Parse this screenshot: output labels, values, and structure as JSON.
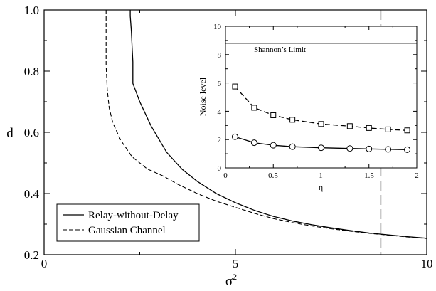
{
  "chart_data": [
    {
      "id": "main",
      "type": "line",
      "title": "",
      "xlabel": "σ",
      "xlabel_sup": "2",
      "ylabel": "d",
      "xlim": [
        0,
        10
      ],
      "ylim": [
        0.2,
        1.0
      ],
      "xticks": [
        0,
        5,
        10
      ],
      "xtick_labels": [
        "0",
        "5",
        "10"
      ],
      "yticks": [
        0.2,
        0.4,
        0.6,
        0.8,
        1.0
      ],
      "ytick_labels": [
        "0.2",
        "0.4",
        "0.6",
        "0.8",
        "1.0"
      ],
      "grid": false,
      "legend_position": "bottom-left",
      "series": [
        {
          "name": "Relay-without-Delay",
          "style": "solid",
          "color": "#000000",
          "x": [
            2.25,
            2.25,
            2.28,
            2.3,
            2.32,
            2.32,
            2.5,
            2.8,
            3.2,
            3.6,
            4.0,
            4.5,
            5.0,
            5.5,
            6.0,
            6.5,
            7.0,
            7.5,
            8.0,
            8.5,
            9.0,
            9.5,
            10.0
          ],
          "y": [
            1.0,
            0.98,
            0.93,
            0.88,
            0.83,
            0.76,
            0.7,
            0.62,
            0.535,
            0.48,
            0.44,
            0.4,
            0.37,
            0.345,
            0.325,
            0.31,
            0.298,
            0.288,
            0.279,
            0.271,
            0.265,
            0.259,
            0.254
          ]
        },
        {
          "name": "Gaussian Channel",
          "style": "dashed",
          "color": "#000000",
          "x": [
            1.62,
            1.62,
            1.65,
            1.7,
            1.8,
            2.0,
            2.3,
            2.7,
            3.1,
            3.5,
            4.0,
            4.5,
            5.0,
            5.5,
            6.0,
            6.5,
            7.0,
            7.5,
            8.0,
            8.5,
            9.0,
            9.5,
            10.0
          ],
          "y": [
            1.0,
            0.82,
            0.74,
            0.68,
            0.63,
            0.575,
            0.52,
            0.48,
            0.458,
            0.43,
            0.4,
            0.375,
            0.355,
            0.335,
            0.318,
            0.305,
            0.294,
            0.285,
            0.277,
            0.27,
            0.264,
            0.258,
            0.253
          ]
        }
      ],
      "annotations": [
        {
          "type": "vline",
          "x": 8.8,
          "style": "long-dash",
          "color": "#000000"
        }
      ]
    },
    {
      "id": "inset",
      "type": "line",
      "title": "",
      "xlabel": "η",
      "ylabel": "Noise level",
      "xlim": [
        0,
        2
      ],
      "ylim": [
        0,
        10
      ],
      "xticks": [
        0,
        0.5,
        1,
        1.5,
        2
      ],
      "xtick_labels": [
        "0",
        "0.5",
        "1",
        "1.5",
        "2"
      ],
      "yticks": [
        0,
        2,
        4,
        6,
        8,
        10
      ],
      "ytick_labels": [
        "0",
        "2",
        "4",
        "6",
        "8",
        "10"
      ],
      "grid": false,
      "legend_position": "none",
      "series": [
        {
          "marker": "square",
          "style": "dashed",
          "color": "#000000",
          "x": [
            0.1,
            0.3,
            0.5,
            0.7,
            1.0,
            1.3,
            1.5,
            1.7,
            1.9
          ],
          "y": [
            5.75,
            4.25,
            3.72,
            3.4,
            3.1,
            2.95,
            2.82,
            2.72,
            2.65
          ]
        },
        {
          "marker": "circle",
          "style": "solid",
          "color": "#000000",
          "x": [
            0.1,
            0.3,
            0.5,
            0.7,
            1.0,
            1.3,
            1.5,
            1.7,
            1.9
          ],
          "y": [
            2.2,
            1.78,
            1.6,
            1.5,
            1.42,
            1.37,
            1.34,
            1.31,
            1.29
          ]
        }
      ],
      "reference_line": {
        "y": 8.8,
        "label": "Shannon’s Limit"
      }
    }
  ]
}
